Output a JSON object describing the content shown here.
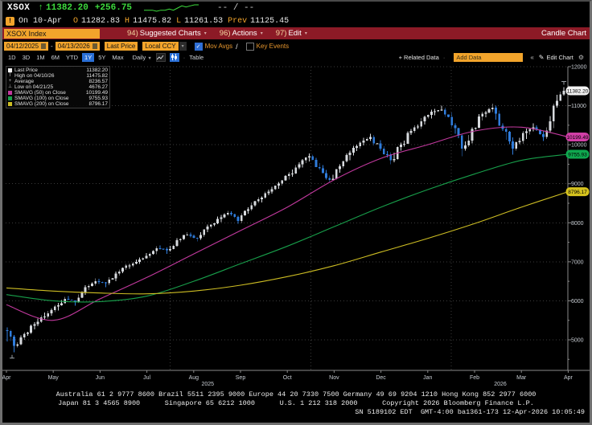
{
  "quote": {
    "symbol": "XSOX",
    "arrow": "↑",
    "last": "11382.20",
    "change": "+256.75",
    "bid_ask": "-- / --",
    "sparkline": [
      4,
      4,
      4,
      3,
      4,
      4,
      5,
      4,
      6,
      8,
      7,
      8,
      9,
      9
    ],
    "session": "On 10-Apr",
    "open_label": "O",
    "open": "11282.83",
    "high_label": "H",
    "high": "11475.82",
    "low_label": "L",
    "low": "11261.53",
    "prev_label": "Prev",
    "prev": "11125.45"
  },
  "menu": {
    "security": "XSOX Index",
    "items": [
      {
        "num": "94)",
        "label": "Suggested Charts"
      },
      {
        "num": "96)",
        "label": "Actions"
      },
      {
        "num": "97)",
        "label": "Edit"
      }
    ],
    "right_label": "Candle Chart"
  },
  "toolbar": {
    "date_from": "04/12/2025",
    "date_to": "04/13/2026",
    "range_separator": "-",
    "field": "Last Price",
    "currency": "Local CCY",
    "mov_avgs_label": "Mov Avgs",
    "key_events_label": "Key Events"
  },
  "tab_bar": {
    "ranges": [
      "1D",
      "3D",
      "1M",
      "6M",
      "YTD",
      "1Y",
      "5Y",
      "Max"
    ],
    "selected_range": "1Y",
    "period": "Daily",
    "table_label": "Table",
    "related_data_label": "+ Related Data",
    "add_data_placeholder": "Add Data",
    "edit_chart_label": "Edit Chart"
  },
  "legend": {
    "items": [
      {
        "swatch": "square",
        "color": "#f2f2f2",
        "label": "Last Price",
        "value": "11382.20"
      },
      {
        "swatch": "glyph",
        "glyph": "T",
        "label": "High on 04/10/26",
        "value": "11475.82"
      },
      {
        "swatch": "glyph",
        "glyph": "+",
        "label": "Average",
        "value": "8236.57"
      },
      {
        "swatch": "glyph",
        "glyph": "⊥",
        "label": "Low on 04/21/25",
        "value": "4676.27"
      },
      {
        "swatch": "square",
        "color": "#c2399e",
        "label": "SMAVG (50) on Close",
        "value": "10199.49"
      },
      {
        "swatch": "square",
        "color": "#18a04b",
        "label": "SMAVG (100) on Close",
        "value": "9755.93"
      },
      {
        "swatch": "square",
        "color": "#cdbd23",
        "label": "SMAVG (200) on Close",
        "value": "8796.17"
      }
    ]
  },
  "chart_data": {
    "type": "candlestick",
    "title": "XSOX Index 1Y Daily Candle Chart",
    "x_months": [
      "Apr",
      "May",
      "Jun",
      "Jul",
      "Aug",
      "Sep",
      "Oct",
      "Nov",
      "Dec",
      "Jan",
      "Feb",
      "Mar",
      "Apr"
    ],
    "year_labels": [
      {
        "text": "2025",
        "month_index": 4.3
      },
      {
        "text": "2026",
        "month_index": 10.55
      }
    ],
    "ylim": [
      4500,
      12150
    ],
    "y_ticks": [
      5000,
      6000,
      7000,
      8000,
      9000,
      10000,
      11000,
      12000
    ],
    "quarter_gridline_month_indices": [
      3.5,
      6.5,
      9.5
    ],
    "weekly_ohlc": [
      [
        5250,
        5320,
        4676.27,
        4850
      ],
      [
        4850,
        5200,
        4800,
        5150
      ],
      [
        5150,
        5450,
        5100,
        5400
      ],
      [
        5400,
        5700,
        5350,
        5600
      ],
      [
        5600,
        5900,
        5550,
        5850
      ],
      [
        5850,
        6100,
        5750,
        6050
      ],
      [
        6050,
        6120,
        5880,
        5980
      ],
      [
        5980,
        6400,
        5950,
        6350
      ],
      [
        6350,
        6580,
        6280,
        6500
      ],
      [
        6500,
        6560,
        6350,
        6450
      ],
      [
        6450,
        6750,
        6400,
        6700
      ],
      [
        6700,
        6950,
        6650,
        6900
      ],
      [
        6900,
        7060,
        6820,
        7000
      ],
      [
        7000,
        7220,
        6950,
        7150
      ],
      [
        7150,
        7400,
        7100,
        7350
      ],
      [
        7350,
        7420,
        7200,
        7300
      ],
      [
        7300,
        7600,
        7260,
        7550
      ],
      [
        7550,
        7760,
        7500,
        7700
      ],
      [
        7700,
        7750,
        7520,
        7600
      ],
      [
        7600,
        7950,
        7560,
        7900
      ],
      [
        7900,
        8160,
        7850,
        8100
      ],
      [
        8100,
        8300,
        8020,
        8250
      ],
      [
        8250,
        8290,
        7980,
        8050
      ],
      [
        8050,
        8400,
        8000,
        8350
      ],
      [
        8350,
        8650,
        8300,
        8600
      ],
      [
        8600,
        8850,
        8520,
        8800
      ],
      [
        8800,
        9050,
        8750,
        9000
      ],
      [
        9000,
        9300,
        8950,
        9250
      ],
      [
        9250,
        9550,
        9180,
        9500
      ],
      [
        9500,
        9780,
        9420,
        9700
      ],
      [
        9700,
        9750,
        9350,
        9400
      ],
      [
        9400,
        9480,
        9050,
        9100
      ],
      [
        9100,
        9500,
        9080,
        9450
      ],
      [
        9450,
        9850,
        9400,
        9800
      ],
      [
        9800,
        10100,
        9720,
        10050
      ],
      [
        10050,
        10280,
        9980,
        10200
      ],
      [
        10200,
        10250,
        9850,
        9900
      ],
      [
        9900,
        9960,
        9500,
        9600
      ],
      [
        9600,
        10050,
        9550,
        10000
      ],
      [
        10000,
        10400,
        9950,
        10350
      ],
      [
        10350,
        10680,
        10300,
        10600
      ],
      [
        10600,
        10900,
        10520,
        10850
      ],
      [
        10850,
        11000,
        10750,
        10900
      ],
      [
        10900,
        10950,
        10450,
        10500
      ],
      [
        10500,
        10550,
        9700,
        9900
      ],
      [
        9900,
        10450,
        9850,
        10400
      ],
      [
        10400,
        10850,
        10350,
        10800
      ],
      [
        10800,
        11050,
        10700,
        10950
      ],
      [
        10950,
        11000,
        10350,
        10400
      ],
      [
        10400,
        10450,
        9750,
        9900
      ],
      [
        9900,
        10350,
        9850,
        10300
      ],
      [
        10300,
        10550,
        10150,
        10450
      ],
      [
        10450,
        10500,
        10100,
        10200
      ],
      [
        10200,
        11050,
        10150,
        11000
      ],
      [
        11000,
        11475.82,
        10950,
        11382.2
      ]
    ],
    "moving_averages": {
      "sma50": {
        "color": "#c2399e",
        "last": 10199.49,
        "monthly": [
          5900,
          5500,
          6050,
          6600,
          7200,
          7800,
          8400,
          9100,
          9650,
          10000,
          10350,
          10450,
          10199.49
        ]
      },
      "sma100": {
        "color": "#18a04b",
        "last": 9755.93,
        "monthly": [
          6160,
          6000,
          5980,
          6120,
          6500,
          6950,
          7400,
          7900,
          8400,
          8850,
          9250,
          9600,
          9755.93
        ]
      },
      "sma200": {
        "color": "#cdbd23",
        "last": 8796.17,
        "monthly": [
          6330,
          6250,
          6200,
          6180,
          6250,
          6400,
          6620,
          6900,
          7250,
          7600,
          7980,
          8400,
          8796.17
        ]
      }
    },
    "annotations": {
      "high": {
        "date": "04/10/26",
        "value": 11475.82
      },
      "low": {
        "date": "04/21/25",
        "value": 4676.27
      },
      "average": 8236.57,
      "last": 11382.2
    },
    "axis_tags": [
      {
        "text": "11382.20",
        "bg": "#f2f2f2",
        "fg": "#000000",
        "price": 11382.2
      },
      {
        "text": "10199.49",
        "bg": "#d13fa6",
        "fg": "#000000",
        "price": 10199.49
      },
      {
        "text": "9755.93",
        "bg": "#0fa84f",
        "fg": "#000000",
        "price": 9755.93
      },
      {
        "text": "8796.17",
        "bg": "#d6c31e",
        "fg": "#000000",
        "price": 8796.17
      }
    ],
    "colors": {
      "up_candle": "#d7dade",
      "down_candle": "#2f7cdb",
      "grid": "#3b3b3b",
      "axis": "#8a8a8a",
      "tick_text": "#c9ced4"
    }
  },
  "footer": {
    "line1": "Australia 61 2 9777 8600 Brazil 5511 2395 9000 Europe 44 20 7330 7500 Germany 49 69 9204 1210 Hong Kong 852 2977 6000",
    "line2": "Japan 81 3 4565 8900      Singapore 65 6212 1000      U.S. 1 212 318 2000      Copyright 2026 Bloomberg Finance L.P.",
    "line3": "SN 5189102 EDT  GMT-4:00 ba1361-173 12-Apr-2026 10:05:49"
  }
}
